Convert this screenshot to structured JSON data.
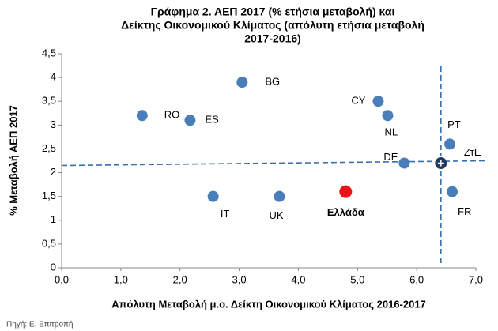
{
  "chart_data": {
    "type": "scatter",
    "title": [
      "Γράφημα 2. ΑΕΠ 2017 (% ετήσια μεταβολή) και",
      "Δείκτης Οικονομικού Κλίματος (απόλυτη ετήσια μεταβολή",
      "2017-2016)"
    ],
    "x_label": "Απόλυτη Μεταβολή μ.ο. Δείκτη Οικονομικού  Κλίματος 2016-2017",
    "y_label": "% Μεταβολή ΑΕΠ 2017",
    "source": "Πηγή: Ε. Επιτροπή",
    "xlim": [
      0,
      7
    ],
    "xticks": [
      {
        "value": 0,
        "label": "0,0"
      },
      {
        "value": 1,
        "label": "1,0"
      },
      {
        "value": 2,
        "label": "2,0"
      },
      {
        "value": 3,
        "label": "3,0"
      },
      {
        "value": 4,
        "label": "4,0"
      },
      {
        "value": 5,
        "label": "5,0"
      },
      {
        "value": 6,
        "label": "6,0"
      },
      {
        "value": 7,
        "label": "7,0"
      }
    ],
    "ylim": [
      0,
      4.5
    ],
    "yticks": [
      0,
      {
        "value": 0.5,
        "label": "0,5"
      },
      1,
      {
        "value": 1.5,
        "label": "1,5"
      },
      2,
      {
        "value": 2.5,
        "label": "2,5"
      },
      3,
      {
        "value": 3.5,
        "label": "3,5"
      },
      4,
      {
        "value": 4.5,
        "label": "4,5"
      }
    ],
    "grid": false,
    "points": [
      {
        "label": "RO",
        "x": 1.36,
        "y": 3.2,
        "color": "#4a7ebb"
      },
      {
        "label": "BG",
        "x": 3.05,
        "y": 3.9,
        "color": "#4a7ebb"
      },
      {
        "label": "ES",
        "x": 2.17,
        "y": 3.1,
        "color": "#4a7ebb"
      },
      {
        "label": "CY",
        "x": 5.35,
        "y": 3.5,
        "color": "#4a7ebb"
      },
      {
        "label": "NL",
        "x": 5.51,
        "y": 3.2,
        "color": "#4a7ebb"
      },
      {
        "label": "PT",
        "x": 6.56,
        "y": 2.6,
        "color": "#4a7ebb"
      },
      {
        "label": "DE",
        "x": 5.79,
        "y": 2.2,
        "color": "#4a7ebb"
      },
      {
        "label": "ZτE",
        "x": 6.41,
        "y": 2.2,
        "color": "#1f3864"
      },
      {
        "label": "FR",
        "x": 6.6,
        "y": 1.6,
        "color": "#4a7ebb"
      },
      {
        "label": "IT",
        "x": 2.56,
        "y": 1.5,
        "color": "#4a7ebb"
      },
      {
        "label": "UK",
        "x": 3.68,
        "y": 1.5,
        "color": "#4a7ebb"
      },
      {
        "label": "Ελλάδα",
        "x": 4.8,
        "y": 1.6,
        "color": "#e8141a"
      }
    ]
  }
}
